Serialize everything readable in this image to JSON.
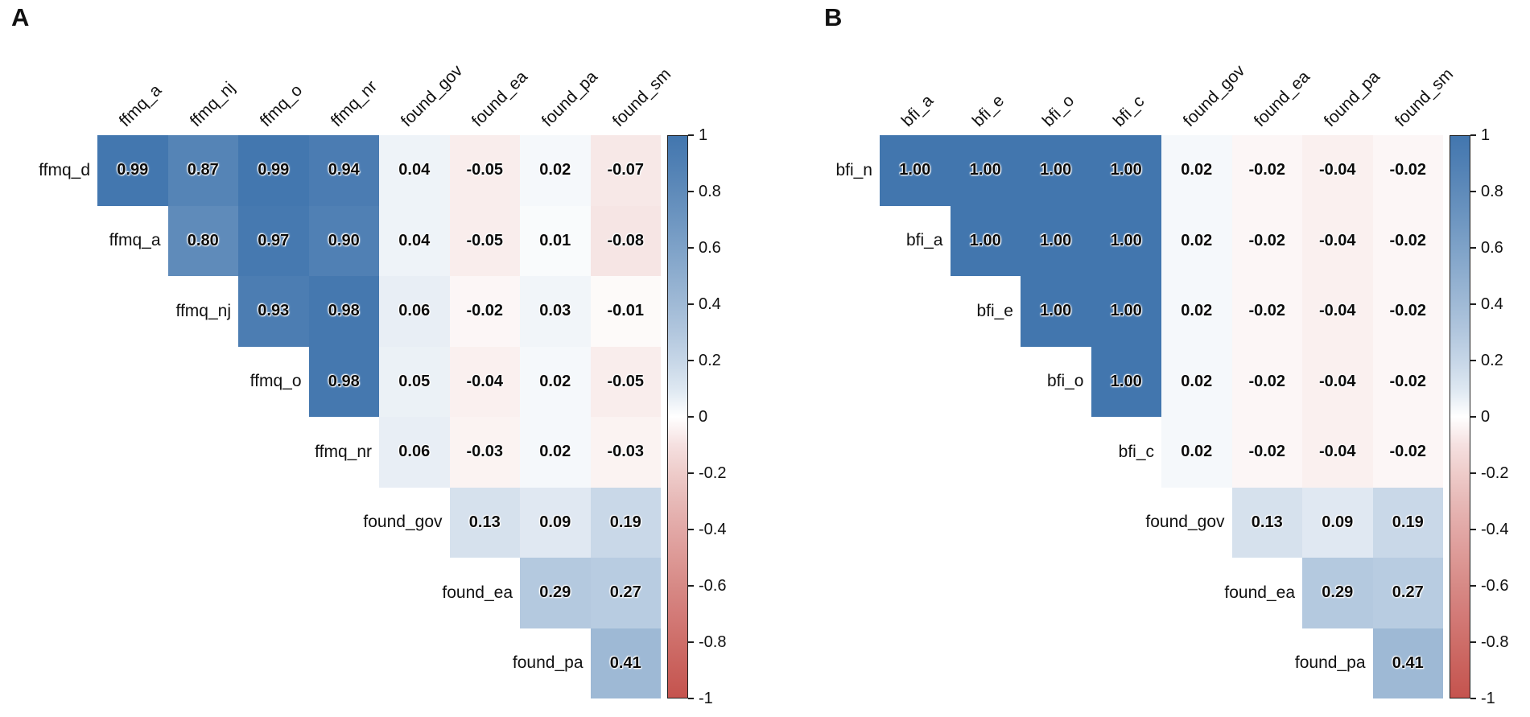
{
  "figure_background": "#ffffff",
  "chart_data": [
    {
      "type": "heatmap",
      "panel_label": "A",
      "triangle": "upper",
      "rows": [
        "ffmq_d",
        "ffmq_a",
        "ffmq_nj",
        "ffmq_o",
        "ffmq_nr",
        "found_gov",
        "found_ea",
        "found_pa"
      ],
      "cols": [
        "ffmq_a",
        "ffmq_nj",
        "ffmq_o",
        "ffmq_nr",
        "found_gov",
        "found_ea",
        "found_pa",
        "found_sm"
      ],
      "values": [
        [
          0.99,
          0.87,
          0.99,
          0.94,
          0.04,
          -0.05,
          0.02,
          -0.07
        ],
        [
          0.8,
          0.97,
          0.9,
          0.04,
          -0.05,
          0.01,
          -0.08
        ],
        [
          0.93,
          0.98,
          0.06,
          -0.02,
          0.03,
          -0.01
        ],
        [
          0.98,
          0.05,
          -0.04,
          0.02,
          -0.05
        ],
        [
          0.06,
          -0.03,
          0.02,
          -0.03
        ],
        [
          0.13,
          0.09,
          0.19
        ],
        [
          0.29,
          0.27
        ],
        [
          0.41
        ]
      ],
      "colorbar": {
        "min": -1,
        "max": 1,
        "ticks": [
          "1",
          "0.8",
          "0.6",
          "0.4",
          "0.2",
          "0",
          "-0.2",
          "-0.4",
          "-0.6",
          "-0.8",
          "-1"
        ],
        "positive_color": "#4276ae",
        "zero_color": "#ffffff",
        "negative_color": "#c5534e",
        "position": "right",
        "orientation": "vertical"
      }
    },
    {
      "type": "heatmap",
      "panel_label": "B",
      "triangle": "upper",
      "rows": [
        "bfi_n",
        "bfi_a",
        "bfi_e",
        "bfi_o",
        "bfi_c",
        "found_gov",
        "found_ea",
        "found_pa"
      ],
      "cols": [
        "bfi_a",
        "bfi_e",
        "bfi_o",
        "bfi_c",
        "found_gov",
        "found_ea",
        "found_pa",
        "found_sm"
      ],
      "values": [
        [
          1.0,
          1.0,
          1.0,
          1.0,
          0.02,
          -0.02,
          -0.04,
          -0.02
        ],
        [
          1.0,
          1.0,
          1.0,
          0.02,
          -0.02,
          -0.04,
          -0.02
        ],
        [
          1.0,
          1.0,
          0.02,
          -0.02,
          -0.04,
          -0.02
        ],
        [
          1.0,
          0.02,
          -0.02,
          -0.04,
          -0.02
        ],
        [
          0.02,
          -0.02,
          -0.04,
          -0.02
        ],
        [
          0.13,
          0.09,
          0.19
        ],
        [
          0.29,
          0.27
        ],
        [
          0.41
        ]
      ],
      "colorbar": {
        "min": -1,
        "max": 1,
        "ticks": [
          "1",
          "0.8",
          "0.6",
          "0.4",
          "0.2",
          "0",
          "-0.2",
          "-0.4",
          "-0.6",
          "-0.8",
          "-1"
        ],
        "positive_color": "#4276ae",
        "zero_color": "#ffffff",
        "negative_color": "#c5534e",
        "position": "right",
        "orientation": "vertical"
      }
    }
  ]
}
